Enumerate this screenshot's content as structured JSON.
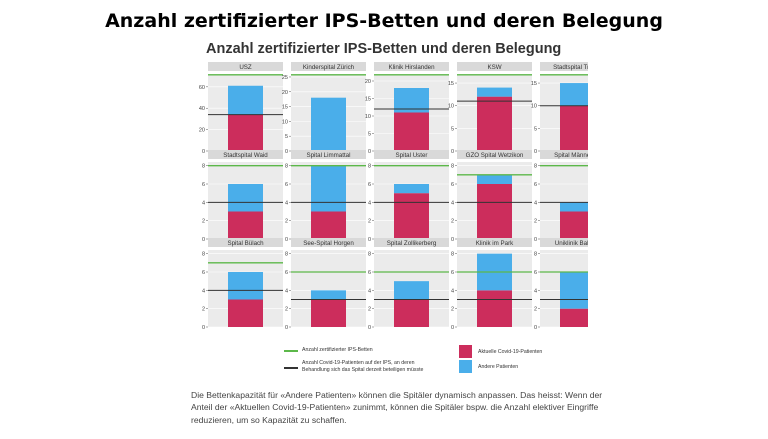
{
  "headline": "Anzahl zertifizierter IPS-Betten und deren Belegung",
  "figure_title": "Anzahl zertifizierter IPS-Betten und deren Belegung",
  "colors": {
    "covid": "#cc2d5c",
    "other": "#4aaeea",
    "certified_line": "#5cb84a",
    "ventilation_line": "#333333",
    "panel_strip": "#d9d9d9",
    "panel_bg": "#ebebeb"
  },
  "legend": {
    "certified": "Anzahl zertifizierter IPS-Betten",
    "ventilation_line1": "Anzahl Covid-19-Patienten auf der IPS, an deren",
    "ventilation_line2": "Behandlung sich das Spital derzeit beteiligen müsste",
    "covid": "Aktuelle Covid-19-Patienten",
    "other": "Andere Patienten"
  },
  "caption": "Die Bettenkapazität für «Andere Patienten» können die Spitäler dynamisch anpassen. Das heisst: Wenn der Anteil der «Aktuellen Covid-19-Patienten» zunimmt, können die Spitäler bspw. die Anzahl elektiver Eingriffe reduzieren, um so Kapazität zu schaffen.",
  "chart_data": {
    "type": "bar",
    "stacked": true,
    "title": "Anzahl zertifizierter IPS-Betten und deren Belegung",
    "facets": [
      {
        "name": "USZ",
        "ylim": [
          0,
          72
        ],
        "ticks": [
          0,
          20,
          40,
          60
        ],
        "covid": 34,
        "other": 27,
        "certified": 72,
        "ventilation": 34
      },
      {
        "name": "Kinderspital Zürich",
        "ylim": [
          0,
          26
        ],
        "ticks": [
          0,
          5,
          10,
          15,
          20,
          25
        ],
        "covid": 0,
        "other": 18,
        "certified": 26,
        "ventilation": 0
      },
      {
        "name": "Klinik Hirslanden",
        "ylim": [
          0,
          22
        ],
        "ticks": [
          0,
          5,
          10,
          15,
          20
        ],
        "covid": 11,
        "other": 7,
        "certified": 22,
        "ventilation": 12
      },
      {
        "name": "KSW",
        "ylim": [
          0,
          17
        ],
        "ticks": [
          0,
          5,
          10,
          15
        ],
        "covid": 12,
        "other": 2,
        "certified": 17,
        "ventilation": 11
      },
      {
        "name": "Stadtspital Triemli",
        "ylim": [
          0,
          17
        ],
        "ticks": [
          0,
          5,
          10,
          15
        ],
        "covid": 10,
        "other": 5,
        "certified": 17,
        "ventilation": 10
      },
      {
        "name": "Stadtspital Waid",
        "ylim": [
          0,
          8.4
        ],
        "ticks": [
          0,
          2,
          4,
          6,
          8
        ],
        "covid": 3,
        "other": 3,
        "certified": 8,
        "ventilation": 4
      },
      {
        "name": "Spital Limmattal",
        "ylim": [
          0,
          8.4
        ],
        "ticks": [
          0,
          2,
          4,
          6,
          8
        ],
        "covid": 3,
        "other": 5,
        "certified": 8,
        "ventilation": 4
      },
      {
        "name": "Spital Uster",
        "ylim": [
          0,
          8.4
        ],
        "ticks": [
          0,
          2,
          4,
          6,
          8
        ],
        "covid": 5,
        "other": 1,
        "certified": 8,
        "ventilation": 4
      },
      {
        "name": "GZO Spital Wetzikon",
        "ylim": [
          0,
          8.4
        ],
        "ticks": [
          0,
          2,
          4,
          6,
          8
        ],
        "covid": 6,
        "other": 1,
        "certified": 7,
        "ventilation": 4
      },
      {
        "name": "Spital Männedorf",
        "ylim": [
          0,
          8.4
        ],
        "ticks": [
          0,
          2,
          4,
          6,
          8
        ],
        "covid": 3,
        "other": 1,
        "certified": 8,
        "ventilation": 4
      },
      {
        "name": "Spital Bülach",
        "ylim": [
          0,
          8.4
        ],
        "ticks": [
          0,
          2,
          4,
          6,
          8
        ],
        "covid": 3,
        "other": 3,
        "certified": 7,
        "ventilation": 4
      },
      {
        "name": "See-Spital Horgen",
        "ylim": [
          0,
          8.4
        ],
        "ticks": [
          0,
          2,
          4,
          6,
          8
        ],
        "covid": 3,
        "other": 1,
        "certified": 6,
        "ventilation": 3
      },
      {
        "name": "Spital Zollikerberg",
        "ylim": [
          0,
          8.4
        ],
        "ticks": [
          0,
          2,
          4,
          6,
          8
        ],
        "covid": 3,
        "other": 2,
        "certified": 6,
        "ventilation": 3
      },
      {
        "name": "Klinik im Park",
        "ylim": [
          0,
          8.4
        ],
        "ticks": [
          0,
          2,
          4,
          6,
          8
        ],
        "covid": 4,
        "other": 4,
        "certified": 6,
        "ventilation": 3
      },
      {
        "name": "Uniklinik Balgrist",
        "ylim": [
          0,
          8.4
        ],
        "ticks": [
          0,
          2,
          4,
          6,
          8
        ],
        "covid": 2,
        "other": 4,
        "certified": 6,
        "ventilation": 3
      }
    ]
  }
}
